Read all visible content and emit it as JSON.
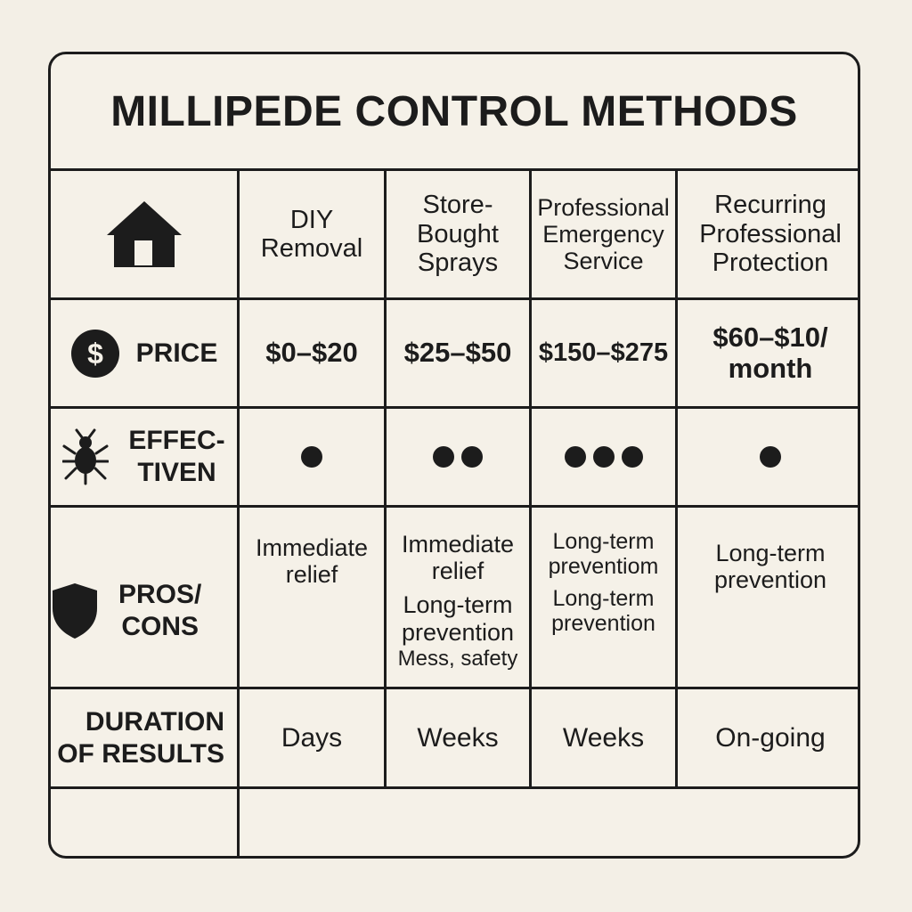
{
  "title": "MILLIPEDE CONTROL METHODS",
  "columns": [
    {
      "lines": [
        "DIY",
        "Removal"
      ]
    },
    {
      "lines": [
        "Store-",
        "Bought",
        "Sprays"
      ]
    },
    {
      "lines": [
        "Professional",
        "Emergency",
        "Service"
      ]
    },
    {
      "lines": [
        "Recurring",
        "Professional",
        "Protection"
      ]
    }
  ],
  "rows": {
    "price": {
      "label": "PRICE",
      "icon": "dollar-coin-icon",
      "values": [
        [
          "$0–$20"
        ],
        [
          "$25–$50"
        ],
        [
          "$150–$275"
        ],
        [
          "$60–$10/",
          "month"
        ]
      ]
    },
    "effectiveness": {
      "label_lines": [
        "EFFEC-",
        "TIVEN"
      ],
      "icon": "bug-icon",
      "ratings": [
        1,
        2,
        3,
        1
      ]
    },
    "pros_cons": {
      "label_lines": [
        "PROS/",
        "CONS"
      ],
      "icon": "shield-icon",
      "values": [
        {
          "first": [
            "Immediate",
            "relief"
          ]
        },
        {
          "first": [
            "Immediate",
            "relief"
          ],
          "second": [
            "Long-term",
            "prevention"
          ],
          "note": "Mess, safety"
        },
        {
          "first": [
            "Long-term",
            "preventiom"
          ],
          "second": [
            "Long-term",
            "prevention"
          ]
        },
        {
          "first": [
            "Long-term",
            "prevention"
          ]
        }
      ]
    },
    "duration": {
      "label_lines": [
        "DURATION",
        "OF RESULTS"
      ],
      "values": [
        "Days",
        "Weeks",
        "Weeks",
        "On-going"
      ]
    }
  },
  "header_icon": "house-icon"
}
